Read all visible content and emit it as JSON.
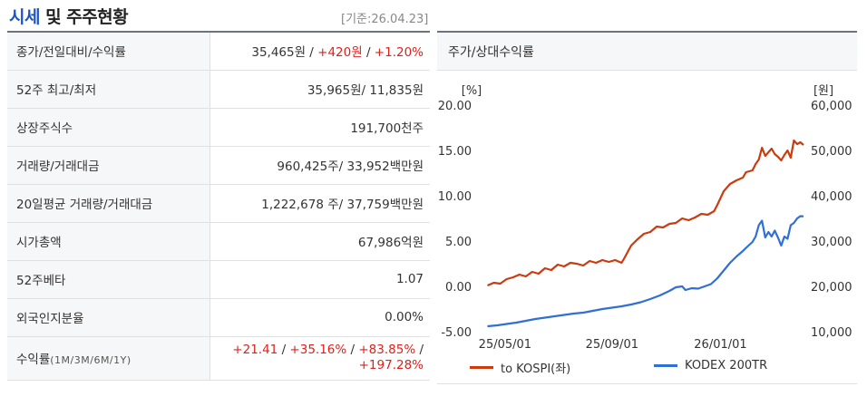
{
  "header": {
    "title_highlight": "시세",
    "title_rest": " 및 주주현황",
    "ref_date": "[기준:26.04.23]"
  },
  "rows": [
    {
      "label": "종가/전일대비/수익률",
      "parts": [
        {
          "text": "35,465원 / ",
          "red": false
        },
        {
          "text": "+420원",
          "red": true
        },
        {
          "text": " / ",
          "red": false
        },
        {
          "text": "+1.20%",
          "red": true
        }
      ]
    },
    {
      "label": "52주 최고/최저",
      "parts": [
        {
          "text": "35,965원/ 11,835원",
          "red": false
        }
      ]
    },
    {
      "label": "상장주식수",
      "parts": [
        {
          "text": "191,700천주",
          "red": false
        }
      ]
    },
    {
      "label": "거래량/거래대금",
      "parts": [
        {
          "text": "960,425주/ 33,952백만원",
          "red": false
        }
      ]
    },
    {
      "label": "20일평균 거래량/거래대금",
      "parts": [
        {
          "text": "1,222,678 주/ 37,759백만원",
          "red": false
        }
      ]
    },
    {
      "label": "시가총액",
      "parts": [
        {
          "text": "67,986억원",
          "red": false
        }
      ]
    },
    {
      "label": "52주베타",
      "parts": [
        {
          "text": "1.07",
          "red": false
        }
      ]
    },
    {
      "label": "외국인지분율",
      "parts": [
        {
          "text": "0.00%",
          "red": false
        }
      ]
    }
  ],
  "returns_row": {
    "label": "수익률",
    "label_sub": "(1M/3M/6M/1Y)",
    "line1": [
      {
        "text": "+21.41",
        "red": true
      },
      {
        "text": " / ",
        "red": false
      },
      {
        "text": "+35.16%",
        "red": true
      },
      {
        "text": " / ",
        "red": false
      },
      {
        "text": "+83.85%",
        "red": true
      },
      {
        "text": " /",
        "red": false
      }
    ],
    "line2": [
      {
        "text": "+197.28%",
        "red": true
      }
    ]
  },
  "chart_header": "주가/상대수익률",
  "chart_data": {
    "type": "line",
    "left_axis": {
      "unit": "[%]",
      "ticks": [
        "20.00",
        "15.00",
        "10.00",
        "5.00",
        "0.00",
        "-5.00"
      ],
      "range": [
        -5,
        20
      ]
    },
    "right_axis": {
      "unit": "[원]",
      "ticks": [
        "60,000",
        "50,000",
        "40,000",
        "30,000",
        "20,000",
        "10,000"
      ],
      "range": [
        10000,
        60000
      ]
    },
    "x_ticks": [
      "25/05/01",
      "25/09/01",
      "26/01/01"
    ],
    "x_range": [
      0,
      100
    ],
    "x_tick_positions": [
      6.5,
      40,
      74
    ],
    "series": [
      {
        "name": "to KOSPI(좌)",
        "axis": "left",
        "color": "#cc3a0f",
        "points": [
          [
            1,
            0.1
          ],
          [
            3,
            0.4
          ],
          [
            5,
            0.3
          ],
          [
            7,
            0.8
          ],
          [
            9,
            1.0
          ],
          [
            11,
            1.3
          ],
          [
            13,
            1.1
          ],
          [
            15,
            1.6
          ],
          [
            17,
            1.4
          ],
          [
            19,
            2.0
          ],
          [
            21,
            1.8
          ],
          [
            23,
            2.4
          ],
          [
            25,
            2.2
          ],
          [
            27,
            2.6
          ],
          [
            29,
            2.5
          ],
          [
            31,
            2.3
          ],
          [
            33,
            2.8
          ],
          [
            35,
            2.6
          ],
          [
            37,
            2.9
          ],
          [
            39,
            2.7
          ],
          [
            41,
            2.9
          ],
          [
            43,
            2.6
          ],
          [
            44,
            3.2
          ],
          [
            46,
            4.5
          ],
          [
            48,
            5.2
          ],
          [
            50,
            5.8
          ],
          [
            52,
            6.0
          ],
          [
            54,
            6.6
          ],
          [
            56,
            6.5
          ],
          [
            58,
            6.9
          ],
          [
            60,
            7.0
          ],
          [
            62,
            7.5
          ],
          [
            64,
            7.3
          ],
          [
            66,
            7.6
          ],
          [
            68,
            8.0
          ],
          [
            70,
            7.9
          ],
          [
            72,
            8.3
          ],
          [
            73,
            9.0
          ],
          [
            75,
            10.5
          ],
          [
            77,
            11.3
          ],
          [
            79,
            11.7
          ],
          [
            81,
            12.0
          ],
          [
            82,
            12.6
          ],
          [
            84,
            12.8
          ],
          [
            85,
            13.5
          ],
          [
            86,
            14.0
          ],
          [
            87,
            15.3
          ],
          [
            88,
            14.4
          ],
          [
            89,
            14.8
          ],
          [
            90,
            15.2
          ],
          [
            91,
            14.6
          ],
          [
            92,
            14.3
          ],
          [
            93,
            13.9
          ],
          [
            94,
            14.5
          ],
          [
            95,
            15.0
          ],
          [
            96,
            14.2
          ],
          [
            97,
            16.1
          ],
          [
            98,
            15.7
          ],
          [
            99,
            15.9
          ],
          [
            100,
            15.6
          ]
        ]
      },
      {
        "name": "KODEX 200TR",
        "axis": "right",
        "color": "#2f6fd6",
        "points": [
          [
            1,
            11200
          ],
          [
            4,
            11400
          ],
          [
            7,
            11700
          ],
          [
            10,
            12000
          ],
          [
            13,
            12400
          ],
          [
            16,
            12800
          ],
          [
            19,
            13100
          ],
          [
            22,
            13400
          ],
          [
            25,
            13700
          ],
          [
            28,
            14000
          ],
          [
            31,
            14200
          ],
          [
            34,
            14600
          ],
          [
            37,
            15000
          ],
          [
            40,
            15300
          ],
          [
            43,
            15600
          ],
          [
            46,
            16000
          ],
          [
            49,
            16500
          ],
          [
            52,
            17200
          ],
          [
            55,
            18000
          ],
          [
            58,
            19000
          ],
          [
            60,
            19800
          ],
          [
            62,
            20000
          ],
          [
            63,
            19200
          ],
          [
            65,
            19600
          ],
          [
            67,
            19500
          ],
          [
            69,
            20000
          ],
          [
            71,
            20500
          ],
          [
            73,
            21800
          ],
          [
            75,
            23500
          ],
          [
            77,
            25200
          ],
          [
            79,
            26600
          ],
          [
            81,
            27800
          ],
          [
            82,
            28500
          ],
          [
            84,
            29800
          ],
          [
            85,
            31000
          ],
          [
            86,
            33500
          ],
          [
            87,
            34500
          ],
          [
            88,
            30800
          ],
          [
            89,
            32000
          ],
          [
            90,
            31000
          ],
          [
            91,
            32300
          ],
          [
            92,
            30800
          ],
          [
            93,
            29000
          ],
          [
            94,
            31000
          ],
          [
            95,
            30500
          ],
          [
            96,
            33500
          ],
          [
            97,
            34000
          ],
          [
            98,
            35000
          ],
          [
            99,
            35500
          ],
          [
            100,
            35465
          ]
        ]
      }
    ]
  }
}
